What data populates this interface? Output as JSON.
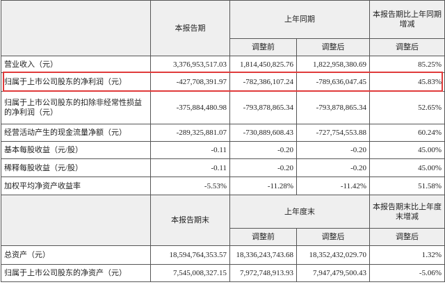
{
  "table1": {
    "header": {
      "current": "本报告期",
      "prior": "上年同期",
      "change": "本报告期比上年同期增减",
      "before": "调整前",
      "after": "调整后",
      "change_after": "调整后"
    },
    "rows": [
      [
        "营业收入（元）",
        "3,376,953,517.03",
        "1,814,450,825.76",
        "1,822,958,380.69",
        "85.25%"
      ],
      [
        "归属于上市公司股东的净利润（元）",
        "-427,708,391.97",
        "-782,386,107.24",
        "-789,636,047.45",
        "45.83%"
      ],
      [
        "归属于上市公司股东的扣除非经常性损益的净利润（元）",
        "-375,884,480.98",
        "-793,878,865.34",
        "-793,878,865.34",
        "52.65%"
      ],
      [
        "经营活动产生的现金流量净额（元）",
        "-289,325,881.07",
        "-730,889,608.43",
        "-727,754,553.88",
        "60.24%"
      ],
      [
        "基本每股收益（元/股）",
        "-0.11",
        "-0.20",
        "-0.20",
        "45.00%"
      ],
      [
        "稀释每股收益（元/股）",
        "-0.11",
        "-0.20",
        "-0.20",
        "45.00%"
      ],
      [
        "加权平均净资产收益率",
        "-5.53%",
        "-11.28%",
        "-11.42%",
        "51.58%"
      ]
    ]
  },
  "table2": {
    "header": {
      "current": "本报告期末",
      "prior": "上年度末",
      "change": "本报告期末比上年度末增减",
      "before": "调整前",
      "after": "调整后",
      "change_after": "调整后"
    },
    "rows": [
      [
        "总资产（元）",
        "18,594,764,353.57",
        "18,336,243,743.68",
        "18,352,432,029.70",
        "1.32%"
      ],
      [
        "归属于上市公司股东的净资产（元）",
        "7,545,008,327.15",
        "7,972,748,913.93",
        "7,947,479,500.43",
        "-5.06%"
      ]
    ]
  }
}
